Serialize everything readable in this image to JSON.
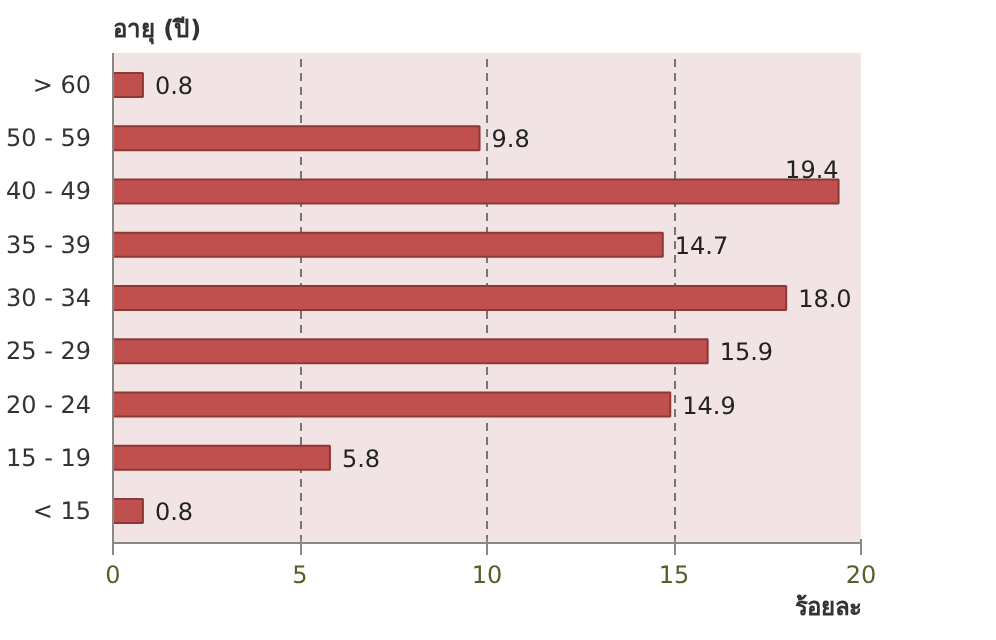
{
  "chart_data": {
    "type": "bar",
    "orientation": "horizontal",
    "ylabel": "อายุ (ปี)",
    "xlabel": "ร้อยละ",
    "categories": [
      "> 60",
      "50 - 59",
      "40 - 49",
      "35 - 39",
      "30 - 34",
      "25 - 29",
      "20 - 24",
      "15 - 19",
      "< 15"
    ],
    "values": [
      0.8,
      9.8,
      19.4,
      14.7,
      18.0,
      15.9,
      14.9,
      5.8,
      0.8
    ],
    "value_labels": [
      "0.8",
      "9.8",
      "19.4",
      "14.7",
      "18.0",
      "15.9",
      "14.9",
      "5.8",
      "0.8"
    ],
    "color": "#c0504d",
    "xlim": [
      0,
      20
    ],
    "xticks": [
      0,
      5,
      10,
      15,
      20
    ],
    "grid": "x"
  }
}
